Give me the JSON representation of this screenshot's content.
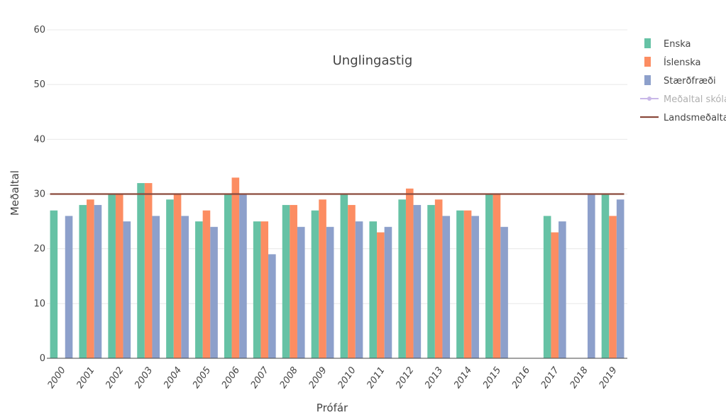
{
  "chart_data": {
    "type": "bar",
    "title": "Unglingastig",
    "xlabel": "Prófár",
    "ylabel": "Meðaltal",
    "ylim": [
      0,
      60
    ],
    "yticks": [
      0,
      10,
      20,
      30,
      40,
      50,
      60
    ],
    "grid": true,
    "legend_position": "right",
    "categories": [
      "2000",
      "2001",
      "2002",
      "2003",
      "2004",
      "2005",
      "2006",
      "2007",
      "2008",
      "2009",
      "2010",
      "2011",
      "2012",
      "2013",
      "2014",
      "2015",
      "2016",
      "2017",
      "2018",
      "2019"
    ],
    "series": [
      {
        "name": "Enska",
        "color": "#66c2a5",
        "values": [
          27,
          28,
          30,
          32,
          29,
          25,
          30,
          25,
          28,
          27,
          30,
          25,
          29,
          28,
          27,
          30,
          null,
          26,
          null,
          30
        ]
      },
      {
        "name": "Íslenska",
        "color": "#fc8d62",
        "values": [
          null,
          29,
          30,
          32,
          30,
          27,
          33,
          25,
          28,
          29,
          28,
          23,
          31,
          29,
          27,
          30,
          null,
          23,
          null,
          26
        ]
      },
      {
        "name": "Stærðfræði",
        "color": "#8da0cb",
        "values": [
          26,
          28,
          25,
          26,
          26,
          24,
          30,
          19,
          24,
          24,
          25,
          24,
          28,
          26,
          26,
          24,
          null,
          25,
          30,
          29
        ]
      }
    ],
    "lines": [
      {
        "name": "Meðaltal skóla",
        "color": "#c9b8e8",
        "type": "line-marker",
        "values": []
      },
      {
        "name": "Landsmeðaltal",
        "color": "#8b4a3c",
        "type": "line",
        "value": 30,
        "x_range": [
          "2000",
          "2019"
        ]
      }
    ]
  }
}
